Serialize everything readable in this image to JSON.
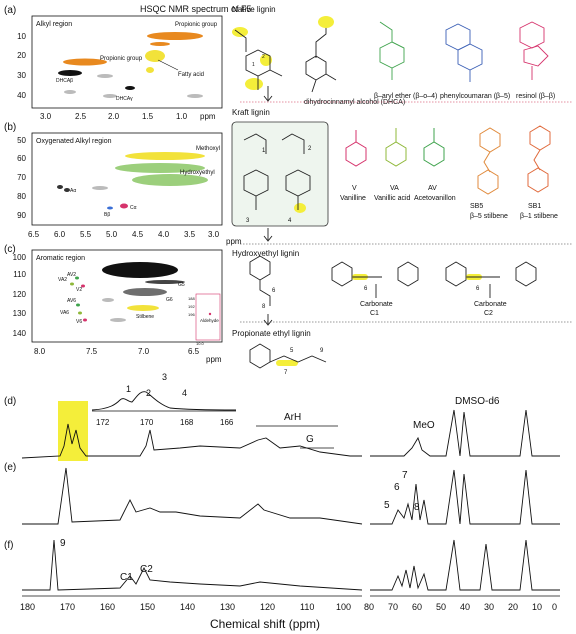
{
  "figure_title": "HSQC NMR spectrum of F5",
  "panels": {
    "a": {
      "letter": "(a)",
      "region": "Alkyl region",
      "xticks": [
        "3.0",
        "2.5",
        "2.0",
        "1.5",
        "1.0"
      ],
      "xunit": "ppm",
      "yticks": [
        "10",
        "20",
        "30",
        "40"
      ],
      "labels": {
        "propionic_top": "Propionic group",
        "propionic_mid": "Propionic group",
        "dhca_s": "DHCAβ",
        "dhca_b": "DHCAγ",
        "fatty": "Fatty acid"
      }
    },
    "b": {
      "letter": "(b)",
      "region": "Oxygenated Alkyl region",
      "xticks": [
        "6.5",
        "6.0",
        "5.5",
        "5.0",
        "4.5",
        "4.0",
        "3.5",
        "3.0"
      ],
      "xunit": "ppm",
      "yticks": [
        "50",
        "60",
        "70",
        "80",
        "90"
      ],
      "labels": {
        "methoxyl": "Methoxyl",
        "hydroxyethyl": "Hydroxyethyl",
        "ac": "Aα",
        "bb": "Bβ",
        "ca": "Cα"
      }
    },
    "c": {
      "letter": "(c)",
      "region": "Aromatic region",
      "xticks": [
        "8.0",
        "7.5",
        "7.0",
        "6.5"
      ],
      "xunit": "ppm",
      "yticks": [
        "100",
        "110",
        "120",
        "130",
        "140"
      ],
      "labels": {
        "av2": "AV2",
        "va2": "VA2",
        "v2": "V2",
        "av6": "AV6",
        "va6": "VA6",
        "v6": "V6",
        "g5": "G5",
        "g6": "G6",
        "stilbene": "Stilbene",
        "aldehyde": "Aldehyde"
      },
      "inset_ticks": [
        "188",
        "192",
        "196",
        "10.0"
      ]
    }
  },
  "native": {
    "title": "Native lignin",
    "struct_labels": [
      "dihydrocinnamyl alcohol (DHCA)",
      "β–aryl ether (β–o–4)",
      "phenylcoumaran (β–5)",
      "resinol (β–β)"
    ]
  },
  "kraft": {
    "title": "Kraft lignin",
    "compounds": [
      {
        "code": "V",
        "name": "Vanilline",
        "color": "#d6336c"
      },
      {
        "code": "VA",
        "name": "Vanillic acid",
        "color": "#8fb83a"
      },
      {
        "code": "AV",
        "name": "Acetovanillon",
        "color": "#3fa34d"
      },
      {
        "code": "SB5",
        "name": "β–5 stilbene",
        "color": "#e08a3c"
      },
      {
        "code": "SB1",
        "name": "β–1 stilbene",
        "color": "#e06a3c"
      }
    ],
    "box_labels": [
      "1",
      "2",
      "3",
      "4"
    ]
  },
  "hydroxyethyl": {
    "title": "Hydroxyethyl lignin",
    "labels": [
      "6",
      "8"
    ],
    "carbonates": [
      {
        "name": "Carbonate",
        "code": "C1"
      },
      {
        "name": "Carbonate",
        "code": "C2"
      }
    ]
  },
  "propionate": {
    "title": "Propionate ethyl lignin",
    "labels": [
      "5",
      "7",
      "9"
    ]
  },
  "spectra": {
    "xlabel": "Chemical shift (ppm)",
    "left_ticks": [
      "180",
      "170",
      "160",
      "150",
      "140",
      "130",
      "120",
      "110",
      "100"
    ],
    "right_ticks": [
      "80",
      "70",
      "60",
      "50",
      "40",
      "30",
      "20",
      "10",
      "0"
    ],
    "d": {
      "letter": "(d)",
      "inset_peaks": [
        "1",
        "2",
        "3",
        "4"
      ],
      "inset_ticks": [
        "172",
        "170",
        "168",
        "166"
      ],
      "arh": "ArH",
      "g": "G",
      "meo": "MeO",
      "dmso": "DMSO-d6"
    },
    "e": {
      "letter": "(e)",
      "peaks": [
        "5",
        "6",
        "7",
        "8"
      ]
    },
    "f": {
      "letter": "(f)",
      "peaks": [
        "9",
        "C1",
        "C2"
      ]
    }
  },
  "colors": {
    "orange": "#e8891f",
    "yellow": "#f2e23a",
    "green": "#9ccf7c",
    "highlight": "#f4ee3a",
    "grey": "#9a9a9a",
    "red": "#d6336c"
  }
}
